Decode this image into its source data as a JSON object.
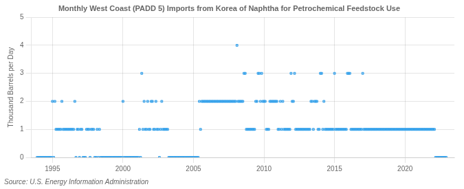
{
  "chart_data": {
    "type": "scatter",
    "title": "Monthly West Coast (PADD 5) Imports from Korea of Naphtha for Petrochemical Feedstock Use",
    "ylabel": "Thousand Barrels per Day",
    "annotation": "Source: U.S. Energy Information Administration",
    "marker": "square",
    "grid": true,
    "xlim": [
      1993.5,
      2023.5
    ],
    "ylim": [
      0.0,
      5.0
    ],
    "xticks": [
      1995,
      2000,
      2005,
      2010,
      2015,
      2020
    ],
    "yticks": [
      0.0,
      1.0,
      2.0,
      3.0,
      4.0,
      5.0
    ],
    "x": [
      1993.917,
      1994.0,
      1994.083,
      1994.167,
      1994.25,
      1994.333,
      1994.417,
      1994.5,
      1994.583,
      1994.667,
      1994.75,
      1994.833,
      1994.917,
      1995.0,
      1995.083,
      1995.167,
      1995.25,
      1995.333,
      1995.417,
      1995.5,
      1995.583,
      1995.667,
      1995.75,
      1995.833,
      1995.917,
      1996.0,
      1996.083,
      1996.167,
      1996.25,
      1996.333,
      1996.417,
      1996.5,
      1996.583,
      1996.667,
      1996.75,
      1996.833,
      1996.917,
      1997.0,
      1997.083,
      1997.167,
      1997.25,
      1997.333,
      1997.417,
      1997.5,
      1997.583,
      1997.667,
      1997.75,
      1997.833,
      1997.917,
      1998.0,
      1998.083,
      1998.167,
      1998.25,
      1998.333,
      1998.417,
      1998.5,
      1998.583,
      1998.667,
      1998.75,
      1998.833,
      1998.917,
      1999.0,
      1999.083,
      1999.167,
      1999.25,
      1999.333,
      1999.417,
      1999.5,
      1999.583,
      1999.667,
      1999.75,
      1999.833,
      1999.917,
      2000.0,
      2000.083,
      2000.167,
      2000.25,
      2000.333,
      2000.417,
      2000.5,
      2000.583,
      2000.667,
      2000.75,
      2000.833,
      2000.917,
      2001.0,
      2001.083,
      2001.167,
      2001.25,
      2001.333,
      2001.417,
      2001.5,
      2001.583,
      2001.667,
      2001.75,
      2001.833,
      2001.917,
      2002.0,
      2002.083,
      2002.167,
      2002.25,
      2002.333,
      2002.417,
      2002.5,
      2002.583,
      2002.667,
      2002.75,
      2002.833,
      2002.917,
      2003.0,
      2003.083,
      2003.167,
      2003.25,
      2003.333,
      2003.417,
      2003.5,
      2003.583,
      2003.667,
      2003.75,
      2003.833,
      2003.917,
      2004.0,
      2004.083,
      2004.167,
      2004.25,
      2004.333,
      2004.417,
      2004.5,
      2004.583,
      2004.667,
      2004.75,
      2004.833,
      2004.917,
      2005.0,
      2005.083,
      2005.167,
      2005.25,
      2005.333,
      2005.417,
      2005.5,
      2005.583,
      2005.667,
      2005.75,
      2005.833,
      2005.917,
      2006.0,
      2006.083,
      2006.167,
      2006.25,
      2006.333,
      2006.417,
      2006.5,
      2006.583,
      2006.667,
      2006.75,
      2006.833,
      2006.917,
      2007.0,
      2007.083,
      2007.167,
      2007.25,
      2007.333,
      2007.417,
      2007.5,
      2007.583,
      2007.667,
      2007.75,
      2007.833,
      2007.917,
      2008.0,
      2008.083,
      2008.167,
      2008.25,
      2008.333,
      2008.417,
      2008.5,
      2008.583,
      2008.667,
      2008.75,
      2008.833,
      2008.917,
      2009.0,
      2009.083,
      2009.167,
      2009.25,
      2009.333,
      2009.417,
      2009.5,
      2009.583,
      2009.667,
      2009.75,
      2009.833,
      2009.917,
      2010.0,
      2010.083,
      2010.167,
      2010.25,
      2010.333,
      2010.417,
      2010.5,
      2010.583,
      2010.667,
      2010.75,
      2010.833,
      2010.917,
      2011.0,
      2011.083,
      2011.167,
      2011.25,
      2011.333,
      2011.417,
      2011.5,
      2011.583,
      2011.667,
      2011.75,
      2011.833,
      2011.917,
      2012.0,
      2012.083,
      2012.167,
      2012.25,
      2012.333,
      2012.417,
      2012.5,
      2012.583,
      2012.667,
      2012.75,
      2012.833,
      2012.917,
      2013.0,
      2013.083,
      2013.167,
      2013.25,
      2013.333,
      2013.417,
      2013.5,
      2013.583,
      2013.667,
      2013.75,
      2013.833,
      2013.917,
      2014.0,
      2014.083,
      2014.167,
      2014.25,
      2014.333,
      2014.417,
      2014.5,
      2014.583,
      2014.667,
      2014.75,
      2014.833,
      2014.917,
      2015.0,
      2015.083,
      2015.167,
      2015.25,
      2015.333,
      2015.417,
      2015.5,
      2015.583,
      2015.667,
      2015.75,
      2015.833,
      2015.917,
      2016.0,
      2016.083,
      2016.167,
      2016.25,
      2016.333,
      2016.417,
      2016.5,
      2016.583,
      2016.667,
      2016.75,
      2016.833,
      2016.917,
      2017.0,
      2017.083,
      2017.167,
      2017.25,
      2017.333,
      2017.417,
      2017.5,
      2017.583,
      2017.667,
      2017.75,
      2017.833,
      2017.917,
      2018.0,
      2018.083,
      2018.167,
      2018.25,
      2018.333,
      2018.417,
      2018.5,
      2018.583,
      2018.667,
      2018.75,
      2018.833,
      2018.917,
      2019.0,
      2019.083,
      2019.167,
      2019.25,
      2019.333,
      2019.417,
      2019.5,
      2019.583,
      2019.667,
      2019.75,
      2019.833,
      2019.917,
      2020.0,
      2020.083,
      2020.167,
      2020.25,
      2020.333,
      2020.417,
      2020.5,
      2020.583,
      2020.667,
      2020.75,
      2020.833,
      2020.917,
      2021.0,
      2021.083,
      2021.167,
      2021.25,
      2021.333,
      2021.417,
      2021.5,
      2021.583,
      2021.667,
      2021.75,
      2021.833,
      2021.917,
      2022.0,
      2022.083,
      2022.167,
      2022.25,
      2022.333,
      2022.417,
      2022.5,
      2022.583,
      2022.667,
      2022.75,
      2022.833,
      2022.917
    ],
    "values": [
      0.0,
      0.0,
      0.0,
      0.0,
      0.0,
      0.0,
      0.0,
      0.0,
      0.0,
      0.0,
      0.0,
      0.0,
      0.0,
      2.0,
      0.0,
      2.0,
      1.0,
      1.0,
      1.0,
      1.0,
      1.0,
      2.0,
      1.0,
      1.0,
      1.0,
      1.0,
      1.0,
      1.0,
      1.0,
      1.0,
      1.0,
      1.0,
      2.0,
      0.0,
      1.0,
      1.0,
      0.0,
      1.0,
      1.0,
      0.0,
      0.0,
      0.0,
      1.0,
      1.0,
      1.0,
      0.0,
      1.0,
      1.0,
      1.0,
      0.0,
      0.0,
      1.0,
      0.0,
      1.0,
      0.0,
      0.0,
      0.0,
      0.0,
      0.0,
      0.0,
      0.0,
      0.0,
      0.0,
      0.0,
      0.0,
      0.0,
      0.0,
      0.0,
      0.0,
      0.0,
      0.0,
      0.0,
      0.0,
      2.0,
      0.0,
      0.0,
      0.0,
      0.0,
      0.0,
      0.0,
      0.0,
      0.0,
      0.0,
      0.0,
      0.0,
      0.0,
      0.0,
      1.0,
      0.0,
      3.0,
      1.0,
      2.0,
      1.0,
      1.0,
      2.0,
      1.0,
      1.0,
      2.0,
      2.0,
      1.0,
      1.0,
      2.0,
      1.0,
      1.0,
      0.0,
      1.0,
      2.0,
      1.0,
      1.0,
      1.0,
      1.0,
      1.0,
      0.0,
      0.0,
      0.0,
      0.0,
      0.0,
      0.0,
      0.0,
      0.0,
      0.0,
      0.0,
      0.0,
      0.0,
      0.0,
      0.0,
      0.0,
      0.0,
      0.0,
      0.0,
      0.0,
      0.0,
      0.0,
      0.0,
      0.0,
      0.0,
      0.0,
      0.0,
      2.0,
      1.0,
      2.0,
      2.0,
      2.0,
      2.0,
      2.0,
      2.0,
      2.0,
      2.0,
      2.0,
      2.0,
      2.0,
      2.0,
      2.0,
      2.0,
      2.0,
      2.0,
      2.0,
      2.0,
      2.0,
      2.0,
      2.0,
      2.0,
      2.0,
      2.0,
      2.0,
      2.0,
      2.0,
      2.0,
      2.0,
      2.0,
      4.0,
      2.0,
      2.0,
      2.0,
      2.0,
      2.0,
      3.0,
      3.0,
      1.0,
      1.0,
      1.0,
      1.0,
      1.0,
      1.0,
      1.0,
      1.0,
      2.0,
      2.0,
      3.0,
      3.0,
      2.0,
      3.0,
      2.0,
      2.0,
      2.0,
      1.0,
      1.0,
      1.0,
      2.0,
      2.0,
      2.0,
      2.0,
      2.0,
      2.0,
      2.0,
      1.0,
      1.0,
      2.0,
      1.0,
      2.0,
      1.0,
      1.0,
      1.0,
      1.0,
      1.0,
      1.0,
      3.0,
      2.0,
      2.0,
      3.0,
      1.0,
      1.0,
      1.0,
      1.0,
      1.0,
      1.0,
      1.0,
      1.0,
      1.0,
      1.0,
      1.0,
      1.0,
      1.0,
      2.0,
      2.0,
      1.0,
      2.0,
      2.0,
      2.0,
      1.0,
      1.0,
      3.0,
      3.0,
      1.0,
      2.0,
      1.0,
      1.0,
      1.0,
      1.0,
      1.0,
      1.0,
      1.0,
      1.0,
      3.0,
      1.0,
      1.0,
      1.0,
      1.0,
      1.0,
      1.0,
      1.0,
      1.0,
      1.0,
      1.0,
      3.0,
      3.0,
      3.0,
      1.0,
      1.0,
      1.0,
      1.0,
      1.0,
      1.0,
      1.0,
      1.0,
      1.0,
      1.0,
      3.0,
      1.0,
      1.0,
      1.0,
      1.0,
      1.0,
      1.0,
      1.0,
      1.0,
      1.0,
      1.0,
      1.0,
      1.0,
      1.0,
      1.0,
      1.0,
      1.0,
      1.0,
      1.0,
      1.0,
      1.0,
      1.0,
      1.0,
      1.0,
      1.0,
      1.0,
      1.0,
      1.0,
      1.0,
      1.0,
      1.0,
      1.0,
      1.0,
      1.0,
      1.0,
      1.0,
      1.0,
      1.0,
      1.0,
      1.0,
      1.0,
      1.0,
      1.0,
      1.0,
      1.0,
      1.0,
      1.0,
      1.0,
      1.0,
      1.0,
      1.0,
      1.0,
      1.0,
      1.0,
      1.0,
      1.0,
      1.0,
      1.0,
      1.0,
      1.0,
      1.0,
      1.0,
      0.0,
      0.0,
      0.0,
      0.0,
      0.0,
      0.0,
      0.0,
      0.0,
      0.0,
      0.0
    ]
  }
}
